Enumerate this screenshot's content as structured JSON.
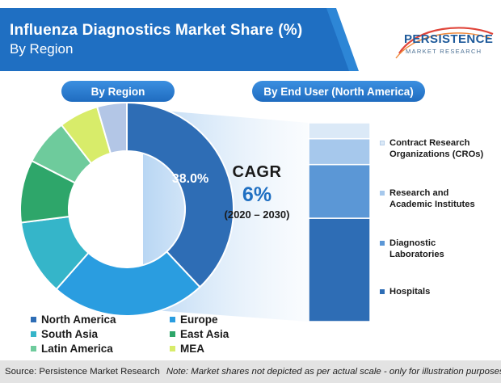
{
  "header": {
    "title": "Influenza Diagnostics Market Share (%)",
    "subtitle": "By Region"
  },
  "logo": {
    "name": "PERSISTENCE",
    "tagline": "MARKET RESEARCH"
  },
  "panels": {
    "region_label": "By Region",
    "end_user_label": "By End User (North America)"
  },
  "cagr": {
    "label": "CAGR",
    "value": "6%",
    "period": "(2020 – 2030)"
  },
  "footer": {
    "source": "Source: Persistence Market Research",
    "note": "Note: Market shares not depicted as per actual scale - only for illustration purposes"
  },
  "colors": {
    "north_america": "#2e6db5",
    "europe": "#2a9de0",
    "south_asia": "#35b5c9",
    "east_asia": "#2ea66a",
    "latin_america": "#6ecb9c",
    "mea": "#d8ec6a",
    "other": "#b3c6e6",
    "bar_hospitals": "#2e6db5",
    "bar_diagnostic": "#5b97d6",
    "bar_research": "#a6c8ec",
    "bar_cro": "#dbe9f7"
  },
  "chart_data": [
    {
      "type": "pie",
      "style": "donut",
      "labels": [
        "North America",
        "Europe",
        "South Asia",
        "East Asia",
        "Latin America",
        "MEA",
        ""
      ],
      "values": [
        38.0,
        23.5,
        11.5,
        9.5,
        7.0,
        6.0,
        4.5
      ],
      "data_labels": [
        "38.0%",
        "",
        "",
        "",
        "",
        "",
        ""
      ],
      "legend": [
        "North America",
        "Europe",
        "South Asia",
        "East Asia",
        "Latin America",
        "MEA"
      ],
      "legend_placement": "bottom"
    },
    {
      "type": "bar",
      "stacked": true,
      "categories": [
        "North America"
      ],
      "series": [
        {
          "name": "Hospitals",
          "values": [
            52
          ]
        },
        {
          "name": "Diagnostic Laboratories",
          "values": [
            27
          ]
        },
        {
          "name": "Research and Academic Institutes",
          "values": [
            13
          ]
        },
        {
          "name": "Contract Research Organizations (CROs)",
          "values": [
            8
          ]
        }
      ],
      "legend_placement": "right"
    }
  ]
}
